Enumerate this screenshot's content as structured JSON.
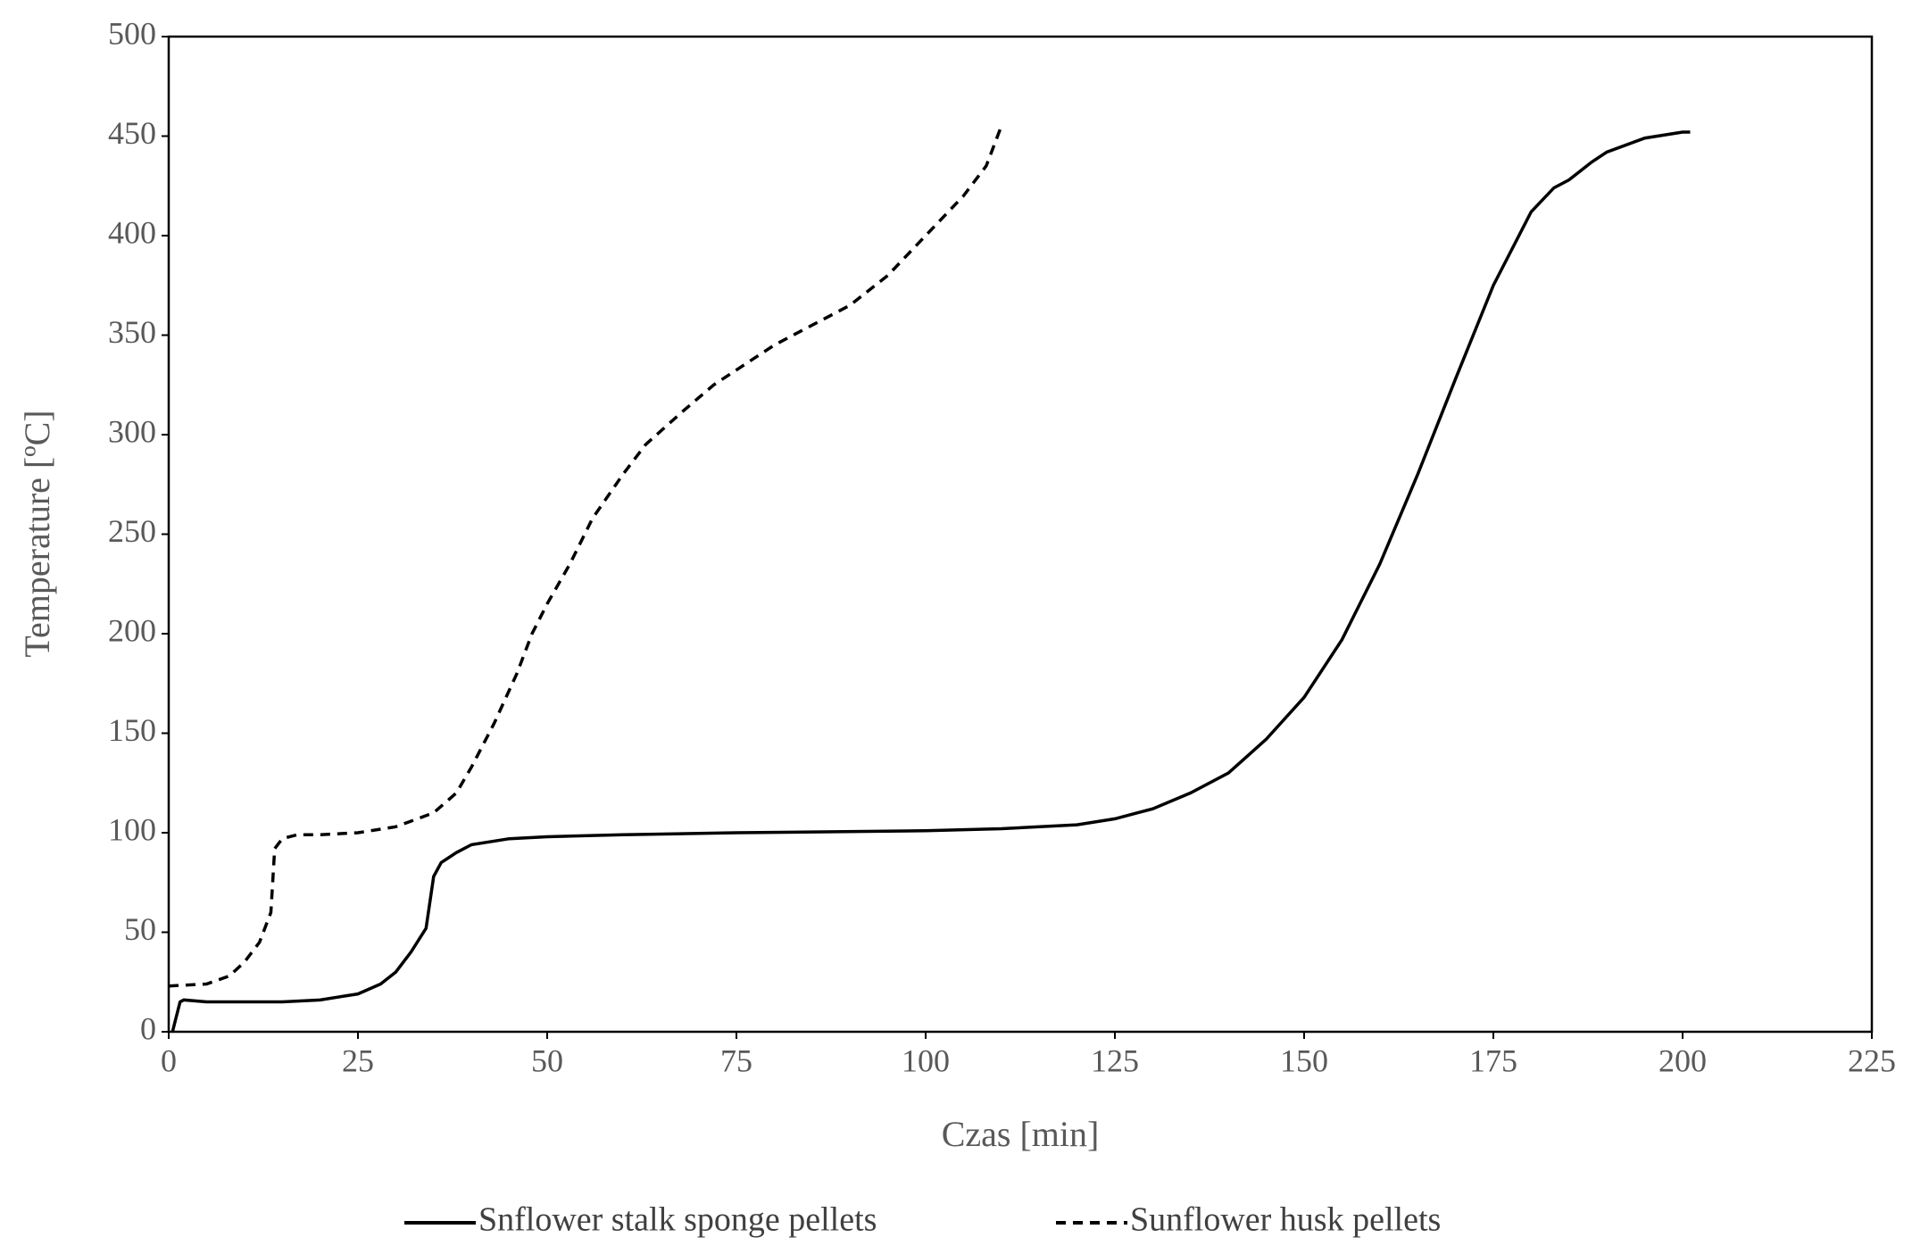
{
  "chart_data": {
    "type": "line",
    "x_label": "Czas [min]",
    "y_label": "Temperature [ºC]",
    "xlim": [
      0,
      225
    ],
    "xticks": [
      0,
      25,
      50,
      75,
      100,
      125,
      150,
      175,
      200,
      225
    ],
    "ylim": [
      0,
      500
    ],
    "yticks": [
      0,
      50,
      100,
      150,
      200,
      250,
      300,
      350,
      400,
      450,
      500
    ],
    "legend": "bottom",
    "series": [
      {
        "name": "Snflower stalk sponge pellets",
        "color": "#000000",
        "dash": "solid",
        "x": [
          0.5,
          1.5,
          2,
          5,
          10,
          15,
          20,
          25,
          28,
          30,
          32,
          34,
          35,
          36,
          38,
          40,
          45,
          50,
          60,
          75,
          100,
          110,
          120,
          125,
          130,
          135,
          140,
          145,
          150,
          155,
          160,
          165,
          170,
          175,
          180,
          183,
          185,
          188,
          190,
          195,
          200,
          201
        ],
        "values": [
          0,
          15,
          16,
          15,
          15,
          15,
          16,
          19,
          24,
          30,
          40,
          52,
          78,
          85,
          90,
          94,
          97,
          98,
          99,
          100,
          101,
          102,
          104,
          107,
          112,
          120,
          130,
          147,
          168,
          197,
          235,
          280,
          328,
          375,
          412,
          424,
          428,
          437,
          442,
          449,
          452,
          452
        ]
      },
      {
        "name": "Sunflower husk pellets",
        "color": "#000000",
        "dash": "dashed",
        "x": [
          0,
          5,
          8,
          10,
          12,
          13.5,
          14,
          15,
          17,
          20,
          25,
          30,
          35,
          38,
          40,
          43,
          46,
          48,
          50,
          53,
          56,
          60,
          63,
          68,
          72,
          76,
          80,
          85,
          90,
          95,
          100,
          105,
          108,
          110
        ],
        "values": [
          23,
          24,
          28,
          35,
          45,
          60,
          92,
          97,
          99,
          99,
          100,
          103,
          110,
          120,
          133,
          155,
          180,
          200,
          215,
          235,
          258,
          280,
          295,
          312,
          325,
          335,
          345,
          355,
          365,
          380,
          400,
          420,
          435,
          455
        ]
      }
    ]
  }
}
